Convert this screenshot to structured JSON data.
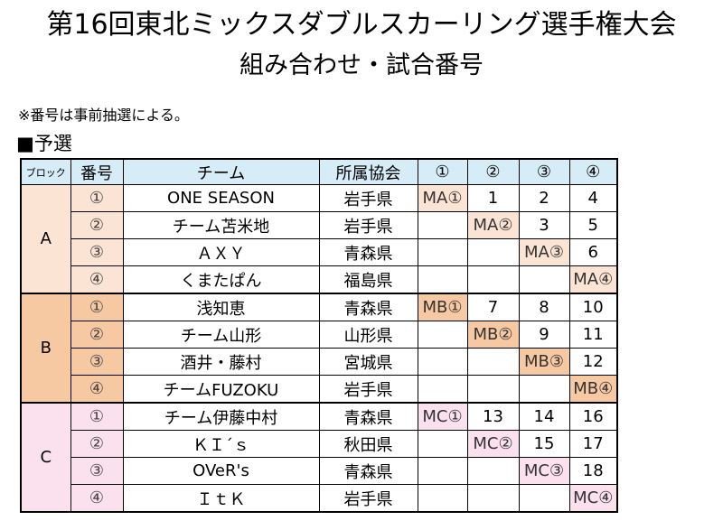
{
  "title": "第16回東北ミックスダブルスカーリング選手権大会",
  "subtitle": "組み合わせ・試合番号",
  "note": "※番号は事前抽選による。",
  "section": "■予選",
  "headers": [
    "ブロック",
    "番号",
    "チーム",
    "所属協会",
    "①",
    "②",
    "③",
    "④"
  ],
  "colors": {
    "header": "#d6ecf7",
    "blockA": "#fce4d4",
    "blockB": "#f7c9a3",
    "blockC": "#fbe1ee"
  },
  "blocks": [
    {
      "name": "A",
      "color": "#fce4d4",
      "rows": [
        {
          "no": "①",
          "team": "ONE SEASON",
          "assoc": "岩手県",
          "cells": [
            "MA①",
            "1",
            "2",
            "4"
          ]
        },
        {
          "no": "②",
          "team": "チーム苫米地",
          "assoc": "岩手県",
          "cells": [
            "",
            "MA②",
            "3",
            "5"
          ]
        },
        {
          "no": "③",
          "team": "ＡＸＹ",
          "assoc": "青森県",
          "cells": [
            "",
            "",
            "MA③",
            "6"
          ]
        },
        {
          "no": "④",
          "team": "くまたぱん",
          "assoc": "福島県",
          "cells": [
            "",
            "",
            "",
            "MA④"
          ]
        }
      ]
    },
    {
      "name": "B",
      "color": "#f7c9a3",
      "rows": [
        {
          "no": "①",
          "team": "浅知恵",
          "assoc": "青森県",
          "cells": [
            "MB①",
            "7",
            "8",
            "10"
          ]
        },
        {
          "no": "②",
          "team": "チーム山形",
          "assoc": "山形県",
          "cells": [
            "",
            "MB②",
            "9",
            "11"
          ]
        },
        {
          "no": "③",
          "team": "酒井・藤村",
          "assoc": "宮城県",
          "cells": [
            "",
            "",
            "MB③",
            "12"
          ]
        },
        {
          "no": "④",
          "team": "チームFUZOKU",
          "assoc": "岩手県",
          "cells": [
            "",
            "",
            "",
            "MB④"
          ]
        }
      ]
    },
    {
      "name": "C",
      "color": "#fbe1ee",
      "rows": [
        {
          "no": "①",
          "team": "チーム伊藤中村",
          "assoc": "青森県",
          "cells": [
            "MC①",
            "13",
            "14",
            "16"
          ]
        },
        {
          "no": "②",
          "team": "ＫＩ´ｓ",
          "assoc": "秋田県",
          "cells": [
            "",
            "MC②",
            "15",
            "17"
          ]
        },
        {
          "no": "③",
          "team": "OVeR's",
          "assoc": "青森県",
          "cells": [
            "",
            "",
            "MC③",
            "18"
          ]
        },
        {
          "no": "④",
          "team": "ＩｔＫ",
          "assoc": "岩手県",
          "cells": [
            "",
            "",
            "",
            "MC④"
          ]
        }
      ]
    }
  ]
}
